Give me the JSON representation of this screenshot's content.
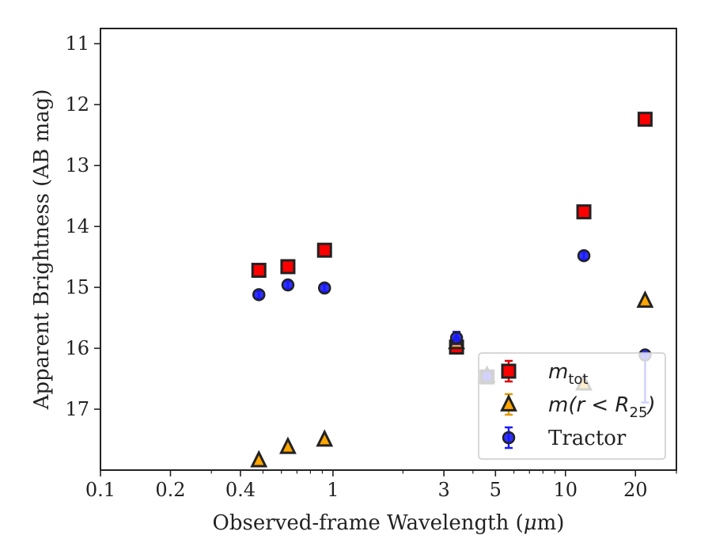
{
  "chart_data": {
    "type": "scatter",
    "xlabel_prefix": "Observed-frame Wavelength (",
    "xlabel_mu": "μ",
    "xlabel_suffix": "m)",
    "ylabel": "Apparent Brightness (AB mag)",
    "xscale": "log",
    "xlim": [
      0.1,
      30
    ],
    "ylim": [
      18,
      10.75
    ],
    "yinverted": true,
    "xticks": [
      {
        "value": 0.1,
        "label": "0.1"
      },
      {
        "value": 0.2,
        "label": "0.2"
      },
      {
        "value": 0.4,
        "label": "0.4"
      },
      {
        "value": 1,
        "label": "1"
      },
      {
        "value": 3,
        "label": "3"
      },
      {
        "value": 5,
        "label": "5"
      },
      {
        "value": 10,
        "label": "10"
      },
      {
        "value": 20,
        "label": "20"
      }
    ],
    "xminor": [
      0.3,
      0.5,
      0.6,
      0.7,
      0.8,
      0.9,
      2,
      4,
      6,
      7,
      8,
      9,
      30
    ],
    "yticks": [
      {
        "value": 11,
        "label": "11"
      },
      {
        "value": 12,
        "label": "12"
      },
      {
        "value": 13,
        "label": "13"
      },
      {
        "value": 14,
        "label": "14"
      },
      {
        "value": 15,
        "label": "15"
      },
      {
        "value": 16,
        "label": "16"
      },
      {
        "value": 17,
        "label": "17"
      }
    ],
    "legend_position": "lower-right",
    "series": [
      {
        "key": "mtot",
        "marker": "square",
        "face": "#ff0000",
        "edge": "#222222",
        "errcolor": "#dd0000",
        "legend_base": "m",
        "legend_sub": "tot",
        "points": [
          {
            "x": 0.48,
            "y": 14.72
          },
          {
            "x": 0.64,
            "y": 14.66
          },
          {
            "x": 0.92,
            "y": 14.39
          },
          {
            "x": 3.4,
            "y": 15.98
          },
          {
            "x": 4.6,
            "y": 16.47
          },
          {
            "x": 12.0,
            "y": 13.76
          },
          {
            "x": 22.0,
            "y": 12.24
          }
        ]
      },
      {
        "key": "mr25",
        "marker": "triangle",
        "face": "#ffa500",
        "edge": "#222222",
        "errcolor": "#e09a00",
        "legend_math": "m(r < R",
        "legend_sub": "25",
        "legend_close": ")",
        "points": [
          {
            "x": 0.48,
            "y": 17.84
          },
          {
            "x": 0.64,
            "y": 17.62
          },
          {
            "x": 0.92,
            "y": 17.5
          },
          {
            "x": 3.4,
            "y": 15.9
          },
          {
            "x": 4.6,
            "y": 16.45
          },
          {
            "x": 12.0,
            "y": 16.58
          },
          {
            "x": 22.0,
            "y": 15.22
          }
        ]
      },
      {
        "key": "tractor",
        "marker": "circle",
        "face": "#1a1aff",
        "edge": "#222222",
        "errcolor": "#1a1aff",
        "legend_label": "Tractor",
        "points": [
          {
            "x": 0.48,
            "y": 15.12,
            "err": 0.06
          },
          {
            "x": 0.64,
            "y": 14.96,
            "err": 0.06
          },
          {
            "x": 0.92,
            "y": 15.01,
            "err": 0.06
          },
          {
            "x": 3.4,
            "y": 15.83,
            "err": 0.1
          },
          {
            "x": 4.6,
            "y": 16.46,
            "err": 0.05
          },
          {
            "x": 12.0,
            "y": 14.48,
            "err": 0.06
          },
          {
            "x": 22.0,
            "y": 16.11,
            "err_low": 0.0,
            "err_high": 0.78
          }
        ]
      }
    ]
  }
}
